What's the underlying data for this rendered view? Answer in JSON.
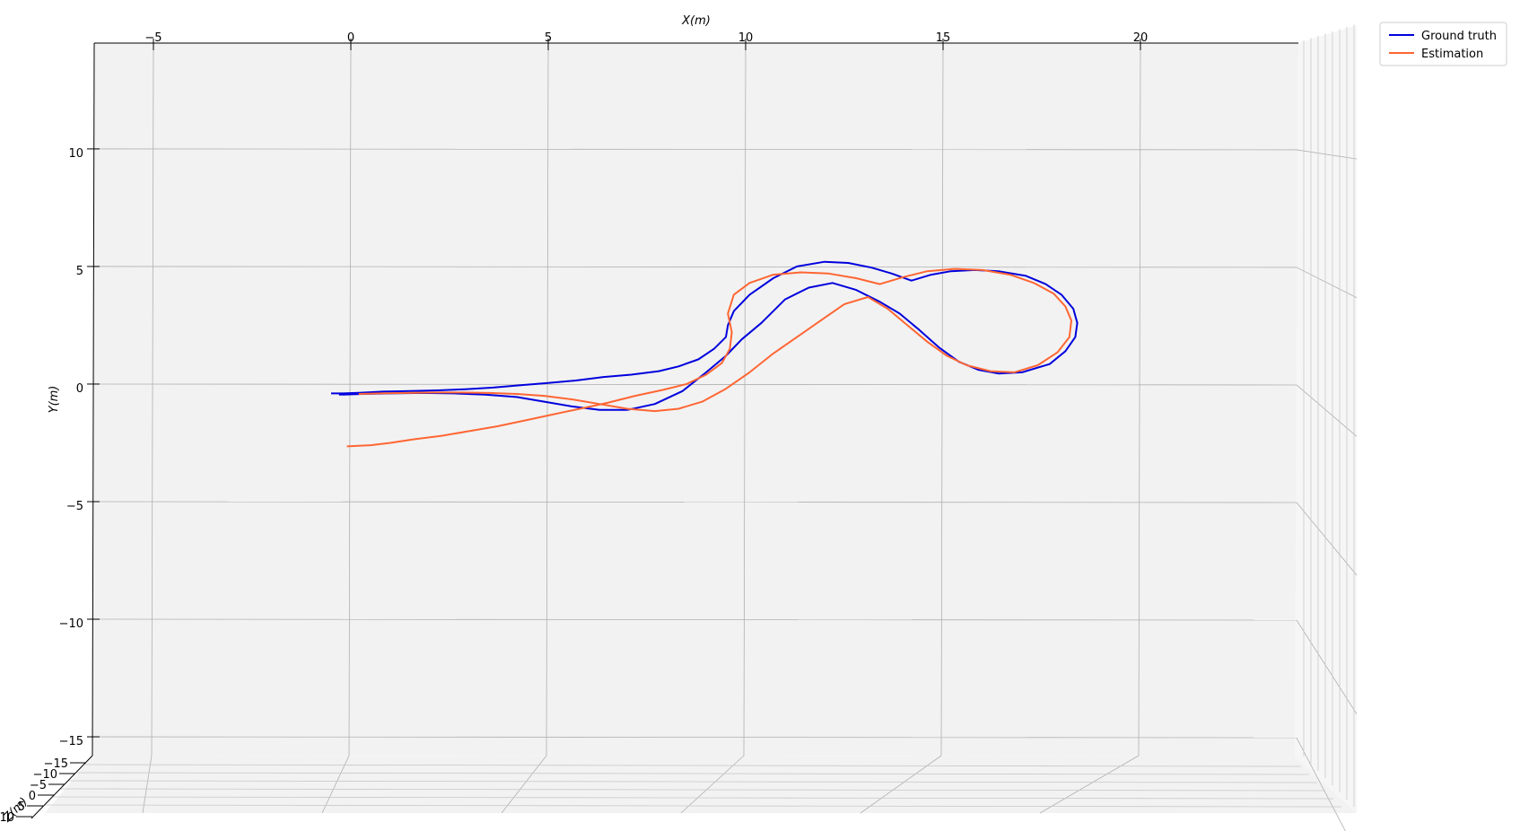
{
  "chart_data": {
    "type": "line",
    "projection": "3d",
    "xlabel": "X(m)",
    "ylabel": "Y(m)",
    "zlabel": "Z(m)",
    "xlim": [
      -6.5,
      24
    ],
    "ylim": [
      -15.8,
      14.5
    ],
    "x_ticks": [
      -5,
      0,
      5,
      10,
      15,
      20
    ],
    "x_tick_labels": [
      "−5",
      "0",
      "5",
      "10",
      "15",
      "20"
    ],
    "y_ticks": [
      10,
      5,
      0,
      -5,
      -10,
      -15
    ],
    "y_tick_labels": [
      "10",
      "5",
      "0",
      "−5",
      "−10",
      "−15"
    ],
    "z_tick_labels": [
      "−15",
      "−10",
      "−5",
      "0",
      "5",
      "10"
    ],
    "grid": true,
    "legend_position": "top-right",
    "series": [
      {
        "name": "Ground truth",
        "color": "#0000dd",
        "x": [
          -0.5,
          -0.2,
          0.2,
          0.8,
          1.5,
          2.2,
          2.9,
          3.6,
          4.3,
          5.0,
          5.7,
          6.4,
          7.1,
          7.8,
          8.3,
          8.8,
          9.2,
          9.5,
          9.55,
          9.7,
          10.1,
          10.7,
          11.3,
          12.0,
          12.6,
          13.2,
          13.7,
          14.2,
          14.7,
          15.2,
          15.8,
          16.4,
          17.1,
          17.6,
          18.0,
          18.3,
          18.4,
          18.35,
          18.1,
          17.7,
          17.0,
          16.4,
          15.9,
          15.4,
          14.9,
          14.4,
          13.9,
          13.4,
          12.8,
          12.2,
          11.6,
          11.0,
          10.4,
          9.9,
          9.5,
          9.0,
          8.4,
          7.7,
          7.0,
          6.3,
          5.6,
          4.9,
          4.2,
          3.4,
          2.6,
          1.8,
          1.0,
          0.3,
          -0.3
        ],
        "y": [
          -0.4,
          -0.4,
          -0.37,
          -0.32,
          -0.3,
          -0.27,
          -0.22,
          -0.15,
          -0.05,
          0.05,
          0.15,
          0.3,
          0.4,
          0.55,
          0.75,
          1.05,
          1.5,
          2.0,
          2.5,
          3.1,
          3.8,
          4.5,
          5.0,
          5.2,
          5.15,
          4.95,
          4.7,
          4.4,
          4.65,
          4.8,
          4.85,
          4.8,
          4.6,
          4.25,
          3.8,
          3.2,
          2.6,
          2.0,
          1.4,
          0.85,
          0.5,
          0.45,
          0.6,
          0.95,
          1.55,
          2.3,
          3.0,
          3.5,
          4.0,
          4.3,
          4.1,
          3.6,
          2.6,
          1.9,
          1.2,
          0.5,
          -0.3,
          -0.85,
          -1.1,
          -1.1,
          -0.95,
          -0.75,
          -0.55,
          -0.45,
          -0.4,
          -0.38,
          -0.4,
          -0.42,
          -0.45
        ]
      },
      {
        "name": "Estimation",
        "color": "#ff6633",
        "x": [
          -0.1,
          0.5,
          1.0,
          1.6,
          2.3,
          3.0,
          3.7,
          4.4,
          5.1,
          5.8,
          6.5,
          7.2,
          7.9,
          8.5,
          9.0,
          9.4,
          9.6,
          9.65,
          9.55,
          9.7,
          10.1,
          10.7,
          11.4,
          12.1,
          12.8,
          13.4,
          14.0,
          14.6,
          15.3,
          16.0,
          16.7,
          17.3,
          17.8,
          18.1,
          18.25,
          18.2,
          17.9,
          17.4,
          16.8,
          16.2,
          15.6,
          15.1,
          14.6,
          14.1,
          13.6,
          13.1,
          12.5,
          11.9,
          11.3,
          10.7,
          10.1,
          9.5,
          8.9,
          8.3,
          7.7,
          7.0,
          6.3,
          5.6,
          4.9,
          4.2,
          3.5,
          2.8,
          2.1,
          1.4,
          0.7,
          0.2
        ],
        "y": [
          -2.65,
          -2.6,
          -2.5,
          -2.35,
          -2.2,
          -2.0,
          -1.8,
          -1.55,
          -1.3,
          -1.05,
          -0.8,
          -0.5,
          -0.25,
          0.0,
          0.4,
          0.9,
          1.5,
          2.2,
          3.0,
          3.8,
          4.3,
          4.65,
          4.75,
          4.7,
          4.5,
          4.25,
          4.55,
          4.8,
          4.9,
          4.85,
          4.65,
          4.3,
          3.85,
          3.3,
          2.7,
          2.0,
          1.35,
          0.8,
          0.5,
          0.55,
          0.8,
          1.2,
          1.8,
          2.5,
          3.2,
          3.7,
          3.4,
          2.7,
          2.0,
          1.3,
          0.5,
          -0.2,
          -0.75,
          -1.05,
          -1.15,
          -1.05,
          -0.85,
          -0.65,
          -0.5,
          -0.42,
          -0.38,
          -0.36,
          -0.36,
          -0.38,
          -0.4,
          -0.42
        ]
      }
    ]
  }
}
